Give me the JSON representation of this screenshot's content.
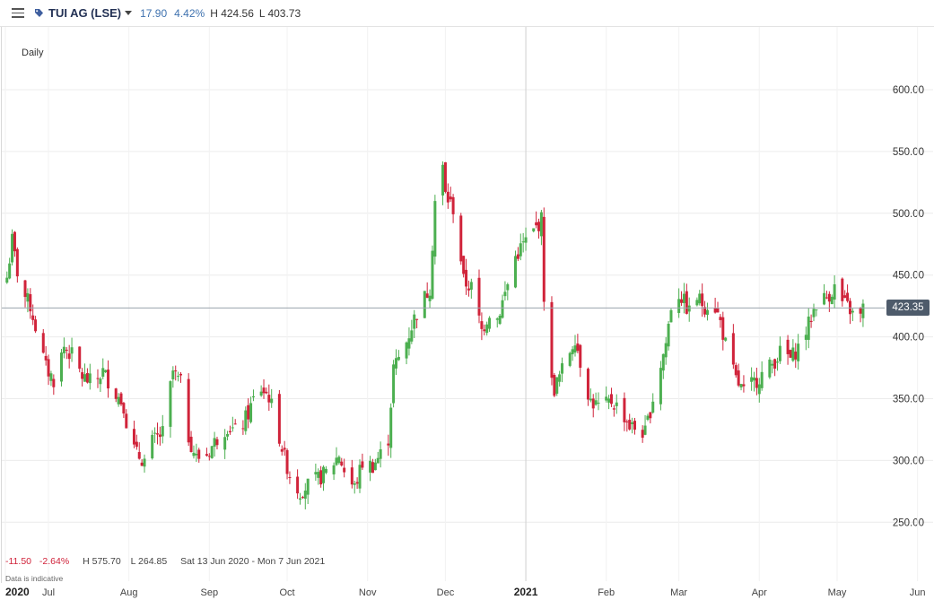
{
  "toolbar": {
    "symbol": "TUI AG (LSE)",
    "change": "17.90",
    "change_pct": "4.42%",
    "high": "H 424.56",
    "low": "L 403.73"
  },
  "chart": {
    "interval": "Daily",
    "current_price": "423.35",
    "footer": {
      "change": "-11.50",
      "change_pct": "-2.64%",
      "high": "H 575.70",
      "low": "L 264.85",
      "range": "Sat 13 Jun 2020 - Mon 7 Jun 2021",
      "disclaimer": "Data is indicative"
    },
    "colors": {
      "up": "#4caf50",
      "down": "#d0233a",
      "price_line": "#9aa3ad",
      "grid": "#ececec"
    }
  },
  "chart_data": {
    "type": "candlestick",
    "y_ticks": [
      "600.00",
      "550.00",
      "500.00",
      "450.00",
      "400.00",
      "350.00",
      "300.00",
      "250.00"
    ],
    "y_range": [
      228,
      648
    ],
    "x_ticks": [
      "2020",
      "Jul",
      "Aug",
      "Sep",
      "Oct",
      "Nov",
      "Dec",
      "2021",
      "Feb",
      "Mar",
      "Apr",
      "May",
      "Jun"
    ],
    "x_tick_bold": [
      "2020",
      "2021"
    ],
    "x_range": [
      "2020-06-13",
      "2021-06-07"
    ],
    "grid": true,
    "legend": "none",
    "close_path": [
      [
        "2020-06-15",
        448
      ],
      [
        "2020-06-17",
        478
      ],
      [
        "2020-06-20",
        440
      ],
      [
        "2020-06-24",
        425
      ],
      [
        "2020-06-27",
        400
      ],
      [
        "2020-06-30",
        375
      ],
      [
        "2020-07-03",
        365
      ],
      [
        "2020-07-07",
        392
      ],
      [
        "2020-07-10",
        385
      ],
      [
        "2020-07-14",
        368
      ],
      [
        "2020-07-18",
        362
      ],
      [
        "2020-07-22",
        372
      ],
      [
        "2020-07-26",
        358
      ],
      [
        "2020-07-30",
        345
      ],
      [
        "2020-08-01",
        318
      ],
      [
        "2020-08-04",
        305
      ],
      [
        "2020-08-07",
        300
      ],
      [
        "2020-08-10",
        315
      ],
      [
        "2020-08-14",
        322
      ],
      [
        "2020-08-18",
        372
      ],
      [
        "2020-08-21",
        362
      ],
      [
        "2020-08-23",
        325
      ],
      [
        "2020-08-27",
        302
      ],
      [
        "2020-08-31",
        305
      ],
      [
        "2020-09-04",
        318
      ],
      [
        "2020-09-08",
        328
      ],
      [
        "2020-09-12",
        322
      ],
      [
        "2020-09-16",
        338
      ],
      [
        "2020-09-20",
        360
      ],
      [
        "2020-09-24",
        352
      ],
      [
        "2020-09-27",
        328
      ],
      [
        "2020-09-30",
        302
      ],
      [
        "2020-10-03",
        282
      ],
      [
        "2020-10-06",
        275
      ],
      [
        "2020-10-09",
        280
      ],
      [
        "2020-10-13",
        285
      ],
      [
        "2020-10-17",
        292
      ],
      [
        "2020-10-21",
        305
      ],
      [
        "2020-10-24",
        285
      ],
      [
        "2020-10-27",
        278
      ],
      [
        "2020-10-30",
        298
      ],
      [
        "2020-11-03",
        296
      ],
      [
        "2020-11-06",
        305
      ],
      [
        "2020-11-09",
        318
      ],
      [
        "2020-11-11",
        375
      ],
      [
        "2020-11-15",
        390
      ],
      [
        "2020-11-19",
        415
      ],
      [
        "2020-11-22",
        428
      ],
      [
        "2020-11-25",
        440
      ],
      [
        "2020-11-27",
        510
      ],
      [
        "2020-11-29",
        558
      ],
      [
        "2020-12-01",
        515
      ],
      [
        "2020-12-05",
        500
      ],
      [
        "2020-12-08",
        445
      ],
      [
        "2020-12-11",
        440
      ],
      [
        "2020-12-15",
        405
      ],
      [
        "2020-12-18",
        420
      ],
      [
        "2020-12-21",
        415
      ],
      [
        "2020-12-24",
        435
      ],
      [
        "2020-12-28",
        465
      ],
      [
        "2020-12-31",
        475
      ],
      [
        "2021-01-04",
        485
      ],
      [
        "2021-01-07",
        495
      ],
      [
        "2021-01-09",
        372
      ],
      [
        "2021-01-12",
        358
      ],
      [
        "2021-01-16",
        378
      ],
      [
        "2021-01-20",
        400
      ],
      [
        "2021-01-23",
        370
      ],
      [
        "2021-01-26",
        348
      ],
      [
        "2021-01-30",
        342
      ],
      [
        "2021-02-03",
        348
      ],
      [
        "2021-02-07",
        340
      ],
      [
        "2021-02-10",
        328
      ],
      [
        "2021-02-13",
        325
      ],
      [
        "2021-02-16",
        322
      ],
      [
        "2021-02-20",
        360
      ],
      [
        "2021-02-24",
        395
      ],
      [
        "2021-02-27",
        440
      ],
      [
        "2021-03-02",
        432
      ],
      [
        "2021-03-05",
        420
      ],
      [
        "2021-03-08",
        432
      ],
      [
        "2021-03-11",
        425
      ],
      [
        "2021-03-14",
        430
      ],
      [
        "2021-03-17",
        412
      ],
      [
        "2021-03-20",
        385
      ],
      [
        "2021-03-23",
        365
      ],
      [
        "2021-03-26",
        355
      ],
      [
        "2021-04-06",
        378
      ],
      [
        "2021-04-10",
        390
      ],
      [
        "2021-04-13",
        382
      ],
      [
        "2021-04-17",
        395
      ],
      [
        "2021-04-20",
        410
      ],
      [
        "2021-04-23",
        428
      ],
      [
        "2021-04-27",
        432
      ],
      [
        "2021-04-30",
        440
      ],
      [
        "2021-05-03",
        428
      ],
      [
        "2021-05-06",
        422
      ],
      [
        "2021-05-09",
        410
      ],
      [
        "2021-05-11",
        423
      ]
    ]
  }
}
